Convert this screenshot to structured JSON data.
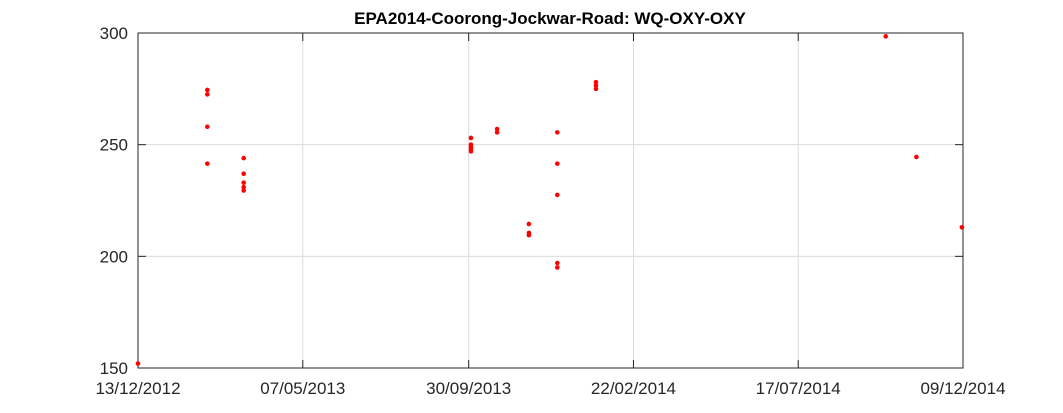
{
  "chart_data": {
    "type": "scatter",
    "title": "EPA2014-Coorong-Jockwar-Road: WQ-OXY-OXY",
    "xlabel": "",
    "ylabel": "",
    "x_is_date": true,
    "xlim": [
      "2012-12-13",
      "2014-12-09"
    ],
    "ylim": [
      150,
      300
    ],
    "x_ticks": [
      "2012-12-13",
      "2013-05-07",
      "2013-09-30",
      "2014-02-22",
      "2014-07-17",
      "2014-12-09"
    ],
    "x_tick_labels": [
      "13/12/2012",
      "07/05/2013",
      "30/09/2013",
      "22/02/2014",
      "17/07/2014",
      "09/12/2014"
    ],
    "y_ticks": [
      150,
      200,
      250,
      300
    ],
    "y_tick_labels": [
      "150",
      "200",
      "250",
      "300"
    ],
    "grid": true,
    "marker_color": "#ff0000",
    "series": [
      {
        "points": [
          {
            "x": "2012-12-13",
            "y": 152
          },
          {
            "x": "2013-02-12",
            "y": 274.5
          },
          {
            "x": "2013-02-12",
            "y": 272.5
          },
          {
            "x": "2013-02-12",
            "y": 258
          },
          {
            "x": "2013-02-12",
            "y": 241.5
          },
          {
            "x": "2013-03-16",
            "y": 244
          },
          {
            "x": "2013-03-16",
            "y": 237
          },
          {
            "x": "2013-03-16",
            "y": 233
          },
          {
            "x": "2013-03-16",
            "y": 231
          },
          {
            "x": "2013-03-16",
            "y": 229.5
          },
          {
            "x": "2013-10-02",
            "y": 253
          },
          {
            "x": "2013-10-02",
            "y": 250
          },
          {
            "x": "2013-10-02",
            "y": 249
          },
          {
            "x": "2013-10-02",
            "y": 248
          },
          {
            "x": "2013-10-02",
            "y": 247
          },
          {
            "x": "2013-10-25",
            "y": 257
          },
          {
            "x": "2013-10-25",
            "y": 255.5
          },
          {
            "x": "2013-11-22",
            "y": 214.5
          },
          {
            "x": "2013-11-22",
            "y": 210.5
          },
          {
            "x": "2013-11-22",
            "y": 209.5
          },
          {
            "x": "2013-12-17",
            "y": 255.5
          },
          {
            "x": "2013-12-17",
            "y": 241.5
          },
          {
            "x": "2013-12-17",
            "y": 227.5
          },
          {
            "x": "2013-12-17",
            "y": 197
          },
          {
            "x": "2013-12-17",
            "y": 195
          },
          {
            "x": "2014-01-20",
            "y": 278
          },
          {
            "x": "2014-01-20",
            "y": 276.5
          },
          {
            "x": "2014-01-20",
            "y": 275
          },
          {
            "x": "2014-10-02",
            "y": 298.5
          },
          {
            "x": "2014-10-29",
            "y": 244.5
          },
          {
            "x": "2014-12-08",
            "y": 213
          }
        ]
      }
    ]
  }
}
